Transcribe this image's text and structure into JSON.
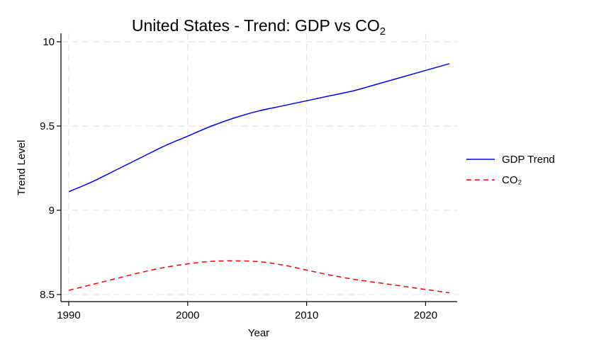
{
  "chart_data": {
    "type": "line",
    "title": "United States - Trend: GDP vs CO",
    "title_subscript": "2",
    "xlabel": "Year",
    "ylabel": "Trend Level",
    "xlim": [
      1990,
      2022
    ],
    "ylim": [
      8.5,
      10.0
    ],
    "x_ticks": [
      1990,
      2000,
      2010,
      2020
    ],
    "y_ticks": [
      {
        "value": 8.5,
        "label": "8.5"
      },
      {
        "value": 9.0,
        "label": "9"
      },
      {
        "value": 9.5,
        "label": "9.5"
      },
      {
        "value": 10.0,
        "label": "10"
      }
    ],
    "grid": true,
    "legend_position": "right",
    "x": [
      1990,
      1992,
      1994,
      1996,
      1998,
      2000,
      2002,
      2004,
      2006,
      2008,
      2010,
      2012,
      2014,
      2016,
      2018,
      2020,
      2022
    ],
    "series": [
      {
        "name": "GDP Trend",
        "color": "#0000ff",
        "dash": "solid",
        "values": [
          9.11,
          9.17,
          9.24,
          9.31,
          9.38,
          9.44,
          9.5,
          9.55,
          9.59,
          9.62,
          9.65,
          9.68,
          9.71,
          9.75,
          9.79,
          9.83,
          9.87
        ]
      },
      {
        "name": "CO₂",
        "color": "#ff0000",
        "dash": "dashed",
        "values": [
          8.525,
          8.56,
          8.595,
          8.63,
          8.66,
          8.682,
          8.697,
          8.7,
          8.695,
          8.675,
          8.645,
          8.615,
          8.59,
          8.57,
          8.55,
          8.53,
          8.51
        ]
      }
    ]
  }
}
